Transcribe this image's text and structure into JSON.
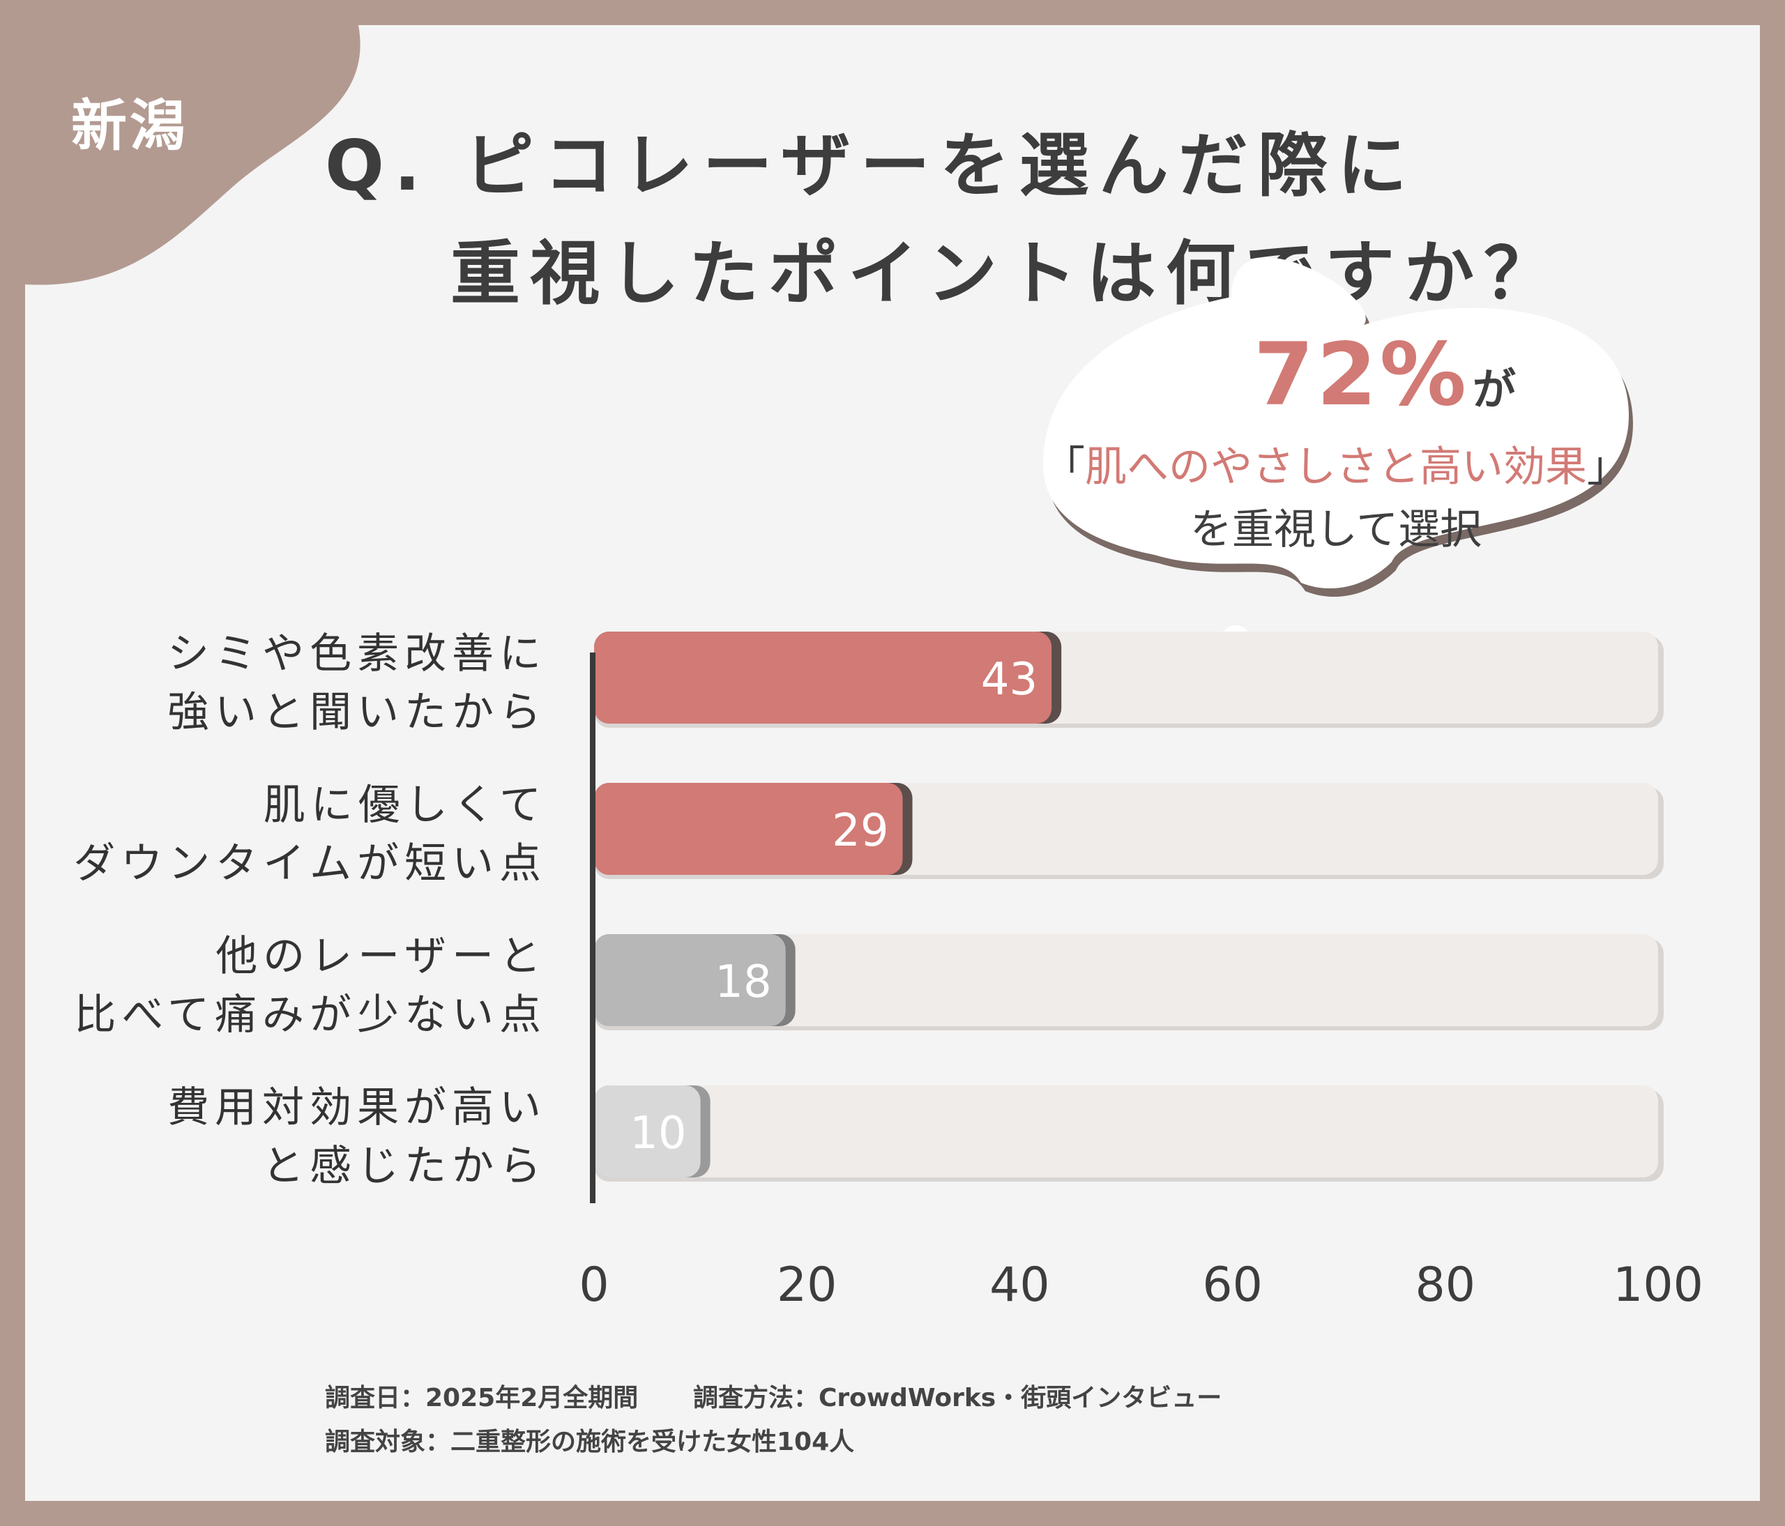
{
  "region_tag": "新潟",
  "question": {
    "line1": "Q. ピコレーザーを選んだ際に",
    "line2": "重視したポイントは何ですか？"
  },
  "callout": {
    "percent": "72%",
    "percent_suffix": "が",
    "highlight_open": "「",
    "highlight_text": "肌へのやさしさと高い効果",
    "highlight_close": "」",
    "line3": "を重視して選択"
  },
  "colors": {
    "accent": "#d27a75",
    "grey_bar": "#b7b7b7",
    "light_bar": "#d8d8d8",
    "track": "#efecea",
    "frame": "#b39a91"
  },
  "chart_data": {
    "type": "bar",
    "orientation": "horizontal",
    "categories": [
      [
        "シミや色素改善に",
        "強いと聞いたから"
      ],
      [
        "肌に優しくて",
        "ダウンタイムが短い点"
      ],
      [
        "他のレーザーと",
        "比べて痛みが少ない点"
      ],
      [
        "費用対効果が高い",
        "と感じたから"
      ]
    ],
    "values": [
      43,
      29,
      18,
      10
    ],
    "value_labels": [
      "43",
      "29",
      "18",
      "10"
    ],
    "xlim": [
      0,
      100
    ],
    "ticks": [
      "0",
      "20",
      "40",
      "60",
      "80",
      "100"
    ]
  },
  "footer": {
    "date": "調査日：2025年2月全期間",
    "method": "調査方法：CrowdWorks・街頭インタビュー",
    "target": "調査対象：二重整形の施術を受けた女性104人"
  }
}
